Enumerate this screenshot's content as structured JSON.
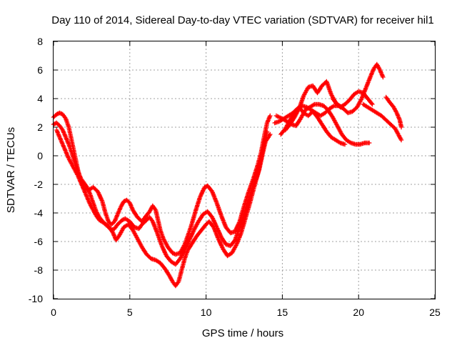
{
  "chart_data": {
    "type": "scatter",
    "title": "Day 110 of 2014, Sidereal Day-to-day VTEC variation (SDTVAR) for receiver hil1",
    "xlabel": "GPS time / hours",
    "ylabel": "SDTVAR / TECUs",
    "xlim": [
      0,
      25
    ],
    "ylim": [
      -10,
      8
    ],
    "xticks": [
      "0",
      "5",
      "10",
      "15",
      "20",
      "25"
    ],
    "yticks": [
      "-10",
      "-8",
      "-6",
      "-4",
      "-2",
      "0",
      "2",
      "4",
      "6",
      "8"
    ],
    "grid": true,
    "marker": "plus",
    "color": "#ff0000",
    "series": [
      {
        "values": [
          [
            0.0,
            2.7
          ],
          [
            0.2,
            2.9
          ],
          [
            0.4,
            3.0
          ],
          [
            0.6,
            2.9
          ],
          [
            0.8,
            2.6
          ],
          [
            1.0,
            2.0
          ],
          [
            1.2,
            1.0
          ],
          [
            1.4,
            0.0
          ],
          [
            1.6,
            -1.0
          ],
          [
            1.8,
            -1.8
          ],
          [
            2.0,
            -2.3
          ],
          [
            2.3,
            -2.4
          ],
          [
            2.6,
            -2.2
          ],
          [
            2.9,
            -2.5
          ],
          [
            3.2,
            -3.2
          ],
          [
            3.4,
            -4.0
          ],
          [
            3.6,
            -4.6
          ],
          [
            3.8,
            -4.8
          ],
          [
            4.0,
            -4.6
          ],
          [
            4.2,
            -4.1
          ],
          [
            4.4,
            -3.6
          ],
          [
            4.6,
            -3.2
          ],
          [
            4.8,
            -3.1
          ],
          [
            5.0,
            -3.3
          ],
          [
            5.2,
            -3.8
          ],
          [
            5.5,
            -4.3
          ],
          [
            5.8,
            -4.6
          ],
          [
            6.0,
            -4.3
          ],
          [
            6.3,
            -3.9
          ],
          [
            6.5,
            -3.5
          ],
          [
            6.7,
            -3.8
          ],
          [
            7.0,
            -5.2
          ],
          [
            7.2,
            -5.8
          ],
          [
            7.5,
            -6.4
          ],
          [
            7.8,
            -6.8
          ],
          [
            8.0,
            -6.9
          ],
          [
            8.3,
            -6.8
          ],
          [
            8.6,
            -6.2
          ],
          [
            9.0,
            -5.0
          ],
          [
            9.3,
            -3.9
          ],
          [
            9.6,
            -2.9
          ],
          [
            9.9,
            -2.2
          ],
          [
            10.1,
            -2.1
          ],
          [
            10.4,
            -2.5
          ],
          [
            10.7,
            -3.3
          ],
          [
            11.0,
            -4.2
          ],
          [
            11.3,
            -5.0
          ],
          [
            11.6,
            -5.4
          ],
          [
            11.9,
            -5.3
          ],
          [
            12.2,
            -4.6
          ],
          [
            12.5,
            -3.5
          ],
          [
            12.8,
            -2.5
          ],
          [
            13.1,
            -1.6
          ],
          [
            13.4,
            -0.6
          ],
          [
            13.6,
            0.2
          ],
          [
            13.8,
            1.3
          ],
          [
            14.0,
            2.3
          ],
          [
            14.2,
            2.8
          ]
        ]
      },
      {
        "values": [
          [
            0.0,
            2.2
          ],
          [
            0.2,
            2.3
          ],
          [
            0.4,
            2.1
          ],
          [
            0.6,
            1.8
          ],
          [
            0.8,
            1.3
          ],
          [
            1.0,
            0.8
          ],
          [
            1.2,
            0.2
          ],
          [
            1.4,
            -0.5
          ],
          [
            1.6,
            -1.1
          ],
          [
            1.8,
            -1.6
          ],
          [
            2.0,
            -1.9
          ],
          [
            2.2,
            -2.2
          ],
          [
            2.4,
            -2.7
          ],
          [
            2.6,
            -3.3
          ],
          [
            2.8,
            -3.9
          ],
          [
            3.0,
            -4.3
          ],
          [
            3.3,
            -4.7
          ],
          [
            3.6,
            -5.0
          ],
          [
            3.8,
            -5.2
          ],
          [
            4.0,
            -5.1
          ],
          [
            4.2,
            -4.8
          ],
          [
            4.5,
            -4.5
          ],
          [
            4.7,
            -4.4
          ],
          [
            5.0,
            -4.6
          ],
          [
            5.3,
            -5.0
          ],
          [
            5.6,
            -5.1
          ],
          [
            5.8,
            -4.8
          ],
          [
            6.1,
            -4.5
          ],
          [
            6.3,
            -4.3
          ],
          [
            6.5,
            -4.6
          ],
          [
            6.8,
            -5.4
          ],
          [
            7.1,
            -6.3
          ],
          [
            7.4,
            -7.0
          ],
          [
            7.7,
            -7.4
          ],
          [
            8.0,
            -7.6
          ],
          [
            8.3,
            -7.2
          ],
          [
            8.6,
            -6.6
          ],
          [
            8.9,
            -5.9
          ],
          [
            9.2,
            -5.2
          ],
          [
            9.5,
            -4.6
          ],
          [
            9.8,
            -4.1
          ],
          [
            10.1,
            -3.9
          ],
          [
            10.4,
            -4.3
          ],
          [
            10.7,
            -5.0
          ],
          [
            11.0,
            -5.7
          ],
          [
            11.3,
            -6.2
          ],
          [
            11.6,
            -6.3
          ],
          [
            11.9,
            -5.9
          ],
          [
            12.2,
            -5.0
          ],
          [
            12.5,
            -4.0
          ],
          [
            12.8,
            -3.0
          ],
          [
            13.1,
            -2.1
          ],
          [
            13.4,
            -1.2
          ],
          [
            13.6,
            -0.2
          ],
          [
            13.8,
            0.8
          ],
          [
            14.0,
            1.7
          ]
        ]
      },
      {
        "values": [
          [
            0.2,
            1.8
          ],
          [
            0.4,
            1.3
          ],
          [
            0.6,
            0.8
          ],
          [
            0.8,
            0.3
          ],
          [
            1.0,
            -0.2
          ],
          [
            1.2,
            -0.6
          ],
          [
            1.4,
            -1.0
          ],
          [
            1.6,
            -1.4
          ],
          [
            1.8,
            -1.9
          ],
          [
            2.0,
            -2.4
          ],
          [
            2.2,
            -2.9
          ],
          [
            2.4,
            -3.4
          ],
          [
            2.6,
            -3.8
          ],
          [
            2.8,
            -4.2
          ],
          [
            3.0,
            -4.5
          ],
          [
            3.3,
            -4.7
          ],
          [
            3.6,
            -4.9
          ],
          [
            3.9,
            -5.4
          ],
          [
            4.1,
            -5.9
          ],
          [
            4.3,
            -5.6
          ],
          [
            4.6,
            -5.0
          ],
          [
            4.9,
            -4.8
          ],
          [
            5.2,
            -5.2
          ],
          [
            5.5,
            -5.8
          ],
          [
            5.8,
            -6.4
          ],
          [
            6.1,
            -6.9
          ],
          [
            6.4,
            -7.2
          ],
          [
            6.7,
            -7.3
          ],
          [
            7.0,
            -7.5
          ],
          [
            7.3,
            -7.9
          ],
          [
            7.6,
            -8.4
          ],
          [
            7.8,
            -8.8
          ],
          [
            8.0,
            -9.1
          ],
          [
            8.2,
            -8.8
          ],
          [
            8.4,
            -8.0
          ],
          [
            8.6,
            -7.2
          ],
          [
            8.8,
            -6.6
          ],
          [
            9.1,
            -6.1
          ],
          [
            9.4,
            -5.6
          ],
          [
            9.7,
            -5.2
          ],
          [
            10.0,
            -4.8
          ],
          [
            10.2,
            -4.6
          ],
          [
            10.5,
            -5.0
          ],
          [
            10.8,
            -5.8
          ],
          [
            11.1,
            -6.5
          ],
          [
            11.4,
            -7.0
          ],
          [
            11.7,
            -6.8
          ],
          [
            12.0,
            -6.2
          ],
          [
            12.3,
            -5.4
          ],
          [
            12.6,
            -4.3
          ],
          [
            12.9,
            -3.2
          ],
          [
            13.2,
            -2.0
          ],
          [
            13.5,
            -0.9
          ],
          [
            13.7,
            0.1
          ],
          [
            13.9,
            1.0
          ],
          [
            14.2,
            1.5
          ]
        ]
      },
      {
        "values": [
          [
            14.5,
            2.3
          ],
          [
            14.8,
            2.4
          ],
          [
            15.1,
            2.6
          ],
          [
            15.4,
            2.8
          ],
          [
            15.7,
            3.0
          ],
          [
            16.0,
            3.3
          ],
          [
            16.3,
            3.5
          ],
          [
            16.6,
            3.4
          ],
          [
            16.9,
            3.2
          ],
          [
            17.2,
            3.0
          ],
          [
            17.5,
            2.8
          ],
          [
            17.8,
            3.0
          ],
          [
            18.1,
            3.3
          ],
          [
            18.4,
            3.5
          ],
          [
            18.7,
            3.5
          ],
          [
            19.0,
            3.3
          ],
          [
            19.3,
            3.0
          ],
          [
            19.6,
            3.1
          ],
          [
            19.9,
            3.4
          ],
          [
            20.2,
            4.0
          ],
          [
            20.5,
            4.8
          ],
          [
            20.8,
            5.6
          ],
          [
            21.0,
            6.1
          ],
          [
            21.2,
            6.4
          ],
          [
            21.4,
            6.0
          ],
          [
            21.6,
            5.5
          ]
        ]
      },
      {
        "values": [
          [
            14.6,
            2.8
          ],
          [
            15.0,
            2.6
          ],
          [
            15.3,
            2.4
          ],
          [
            15.6,
            2.2
          ],
          [
            15.9,
            2.1
          ],
          [
            16.2,
            2.6
          ],
          [
            16.5,
            3.2
          ],
          [
            16.8,
            3.4
          ],
          [
            17.1,
            3.6
          ],
          [
            17.4,
            3.6
          ],
          [
            17.7,
            3.5
          ],
          [
            18.0,
            3.2
          ],
          [
            18.3,
            2.7
          ],
          [
            18.6,
            2.1
          ],
          [
            18.9,
            1.5
          ],
          [
            19.2,
            1.1
          ],
          [
            19.5,
            0.9
          ],
          [
            19.8,
            0.8
          ],
          [
            20.1,
            0.8
          ],
          [
            20.4,
            0.9
          ],
          [
            20.7,
            0.9
          ]
        ]
      },
      {
        "values": [
          [
            15.2,
            1.8
          ],
          [
            15.5,
            2.2
          ],
          [
            15.8,
            2.7
          ],
          [
            16.1,
            3.3
          ],
          [
            16.4,
            4.2
          ],
          [
            16.7,
            4.8
          ],
          [
            17.0,
            4.9
          ],
          [
            17.3,
            4.4
          ],
          [
            17.6,
            4.9
          ],
          [
            17.9,
            5.2
          ],
          [
            18.2,
            4.3
          ],
          [
            18.5,
            3.7
          ],
          [
            18.8,
            3.4
          ],
          [
            19.1,
            3.6
          ],
          [
            19.4,
            3.9
          ],
          [
            19.7,
            4.3
          ],
          [
            20.0,
            4.5
          ],
          [
            20.3,
            4.4
          ],
          [
            20.6,
            4.0
          ],
          [
            20.9,
            3.6
          ]
        ]
      },
      {
        "values": [
          [
            14.9,
            1.5
          ],
          [
            15.2,
            1.9
          ],
          [
            15.5,
            2.5
          ],
          [
            15.8,
            3.1
          ],
          [
            16.1,
            3.4
          ],
          [
            16.4,
            3.0
          ],
          [
            16.7,
            2.8
          ],
          [
            17.0,
            3.1
          ],
          [
            17.3,
            2.7
          ],
          [
            17.6,
            2.2
          ],
          [
            17.9,
            1.7
          ],
          [
            18.2,
            1.3
          ],
          [
            18.5,
            1.1
          ],
          [
            18.8,
            0.9
          ],
          [
            19.1,
            0.8
          ]
        ]
      },
      {
        "values": [
          [
            18.3,
            4.0
          ],
          [
            18.6,
            3.6
          ],
          [
            18.9,
            3.4
          ]
        ]
      },
      {
        "values": [
          [
            20.3,
            3.6
          ],
          [
            20.6,
            3.4
          ],
          [
            20.9,
            3.2
          ],
          [
            21.2,
            3.0
          ],
          [
            21.5,
            2.8
          ],
          [
            21.8,
            2.5
          ],
          [
            22.1,
            2.2
          ],
          [
            22.4,
            1.9
          ],
          [
            22.6,
            1.5
          ],
          [
            22.8,
            1.1
          ]
        ]
      },
      {
        "values": [
          [
            21.8,
            4.1
          ],
          [
            22.0,
            3.8
          ],
          [
            22.3,
            3.4
          ],
          [
            22.5,
            3.0
          ],
          [
            22.7,
            2.5
          ],
          [
            22.8,
            2.0
          ]
        ]
      }
    ]
  }
}
